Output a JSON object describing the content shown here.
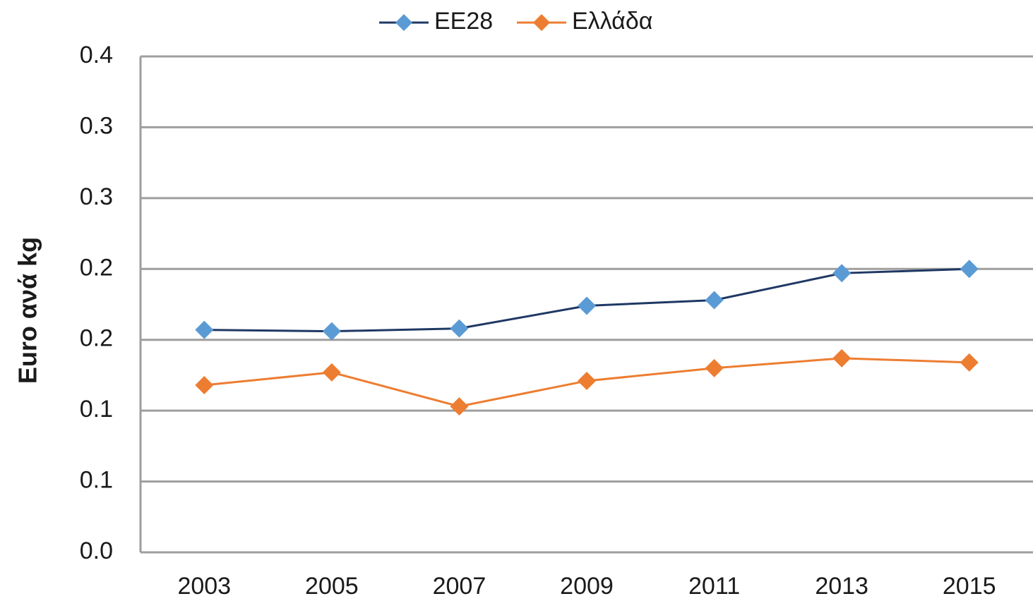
{
  "chart_data": {
    "type": "line",
    "y_label": "Euro ανά kg",
    "categories": [
      "2003",
      "2005",
      "2007",
      "2009",
      "2011",
      "2013",
      "2015"
    ],
    "series": [
      {
        "name": "ΕΕ28",
        "color": "#5b9bd5",
        "line_color": "#1f3864",
        "values": [
          0.157,
          0.156,
          0.158,
          0.174,
          0.178,
          0.197,
          0.2
        ]
      },
      {
        "name": "Ελλάδα",
        "color": "#ed7d31",
        "line_color": "#ed7d31",
        "values": [
          0.118,
          0.127,
          0.103,
          0.121,
          0.13,
          0.137,
          0.134
        ]
      }
    ],
    "ylim": [
      0,
      0.35
    ],
    "yticks": [
      {
        "value": 0,
        "label": "0.0"
      },
      {
        "value": 0.05,
        "label": "0.1"
      },
      0.1,
      {
        "value": 0.15,
        "label": "0.2"
      },
      0.2,
      {
        "value": 0.25,
        "label": "0.3"
      },
      0.3,
      {
        "value": 0.35,
        "label": "0.4"
      }
    ],
    "grid": true,
    "legend": "top"
  }
}
